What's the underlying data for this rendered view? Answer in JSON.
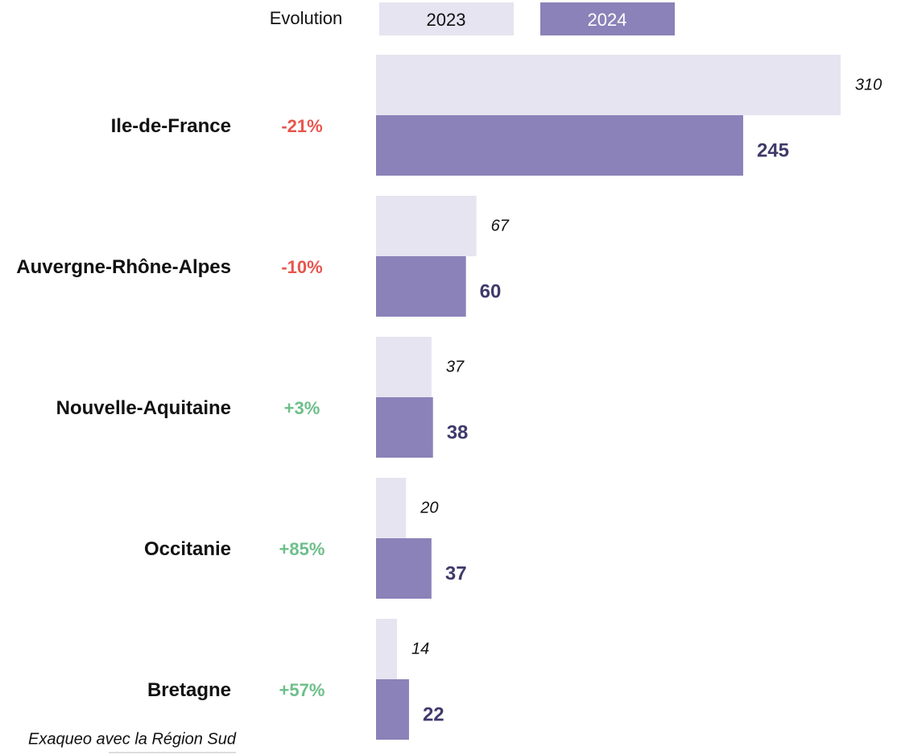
{
  "chart_data": {
    "type": "bar",
    "orientation": "horizontal",
    "categories": [
      "Ile-de-France",
      "Auvergne-Rhône-Alpes",
      "Nouvelle-Aquitaine",
      "Occitanie",
      "Bretagne"
    ],
    "series": [
      {
        "name": "2023",
        "color": "#e6e4f0",
        "values": [
          310,
          67,
          37,
          20,
          14
        ]
      },
      {
        "name": "2024",
        "color": "#8a82b8",
        "values": [
          245,
          60,
          38,
          37,
          22
        ]
      }
    ],
    "evolution": {
      "label": "Evolution",
      "values": [
        -21,
        -10,
        3,
        85,
        57
      ],
      "value_labels": [
        "-21%",
        "-10%",
        "+3%",
        "+85%",
        "+57%"
      ],
      "negative_color": "#e8554e",
      "positive_color": "#6dbf8a"
    },
    "note": "Exaqueo avec la Région Sud"
  }
}
